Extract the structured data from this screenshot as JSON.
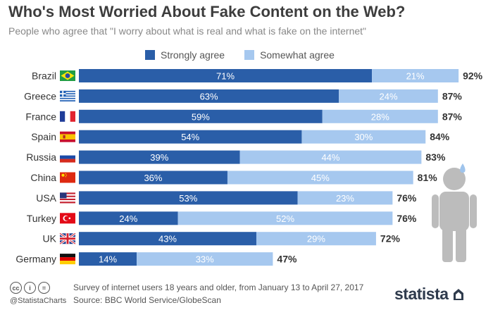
{
  "title": "Who's Most Worried About Fake Content on the Web?",
  "subtitle": "People who agree that \"I worry about what is real and what is fake on the internet\"",
  "legend": [
    {
      "label": "Strongly agree",
      "color": "#2a5ea8"
    },
    {
      "label": "Somewhat agree",
      "color": "#a6c8ef"
    }
  ],
  "chart_data": {
    "type": "bar",
    "orientation": "horizontal",
    "stacked": true,
    "categories": [
      "Brazil",
      "Greece",
      "France",
      "Spain",
      "Russia",
      "China",
      "USA",
      "Turkey",
      "UK",
      "Germany"
    ],
    "series": [
      {
        "name": "Strongly agree",
        "color": "#2a5ea8",
        "values": [
          71,
          63,
          59,
          54,
          39,
          36,
          53,
          24,
          43,
          14
        ]
      },
      {
        "name": "Somewhat agree",
        "color": "#a6c8ef",
        "values": [
          21,
          24,
          28,
          30,
          44,
          45,
          23,
          52,
          29,
          33
        ]
      }
    ],
    "totals": [
      92,
      87,
      87,
      84,
      83,
      81,
      76,
      76,
      72,
      47
    ],
    "value_suffix": "%",
    "xlim": [
      0,
      100
    ],
    "grid": false,
    "legend_position": "top"
  },
  "flags": [
    "brazil-flag-icon",
    "greece-flag-icon",
    "france-flag-icon",
    "spain-flag-icon",
    "russia-flag-icon",
    "china-flag-icon",
    "usa-flag-icon",
    "turkey-flag-icon",
    "uk-flag-icon",
    "germany-flag-icon"
  ],
  "footer": {
    "cc_icons": [
      "cc",
      "i",
      "="
    ],
    "handle": "@StatistaCharts",
    "note": "Survey of internet users 18 years and older, from January 13 to April 27, 2017",
    "source": "Source: BBC World Service/GlobeScan",
    "brand": "statista"
  },
  "illustration": "worried-person-icon"
}
